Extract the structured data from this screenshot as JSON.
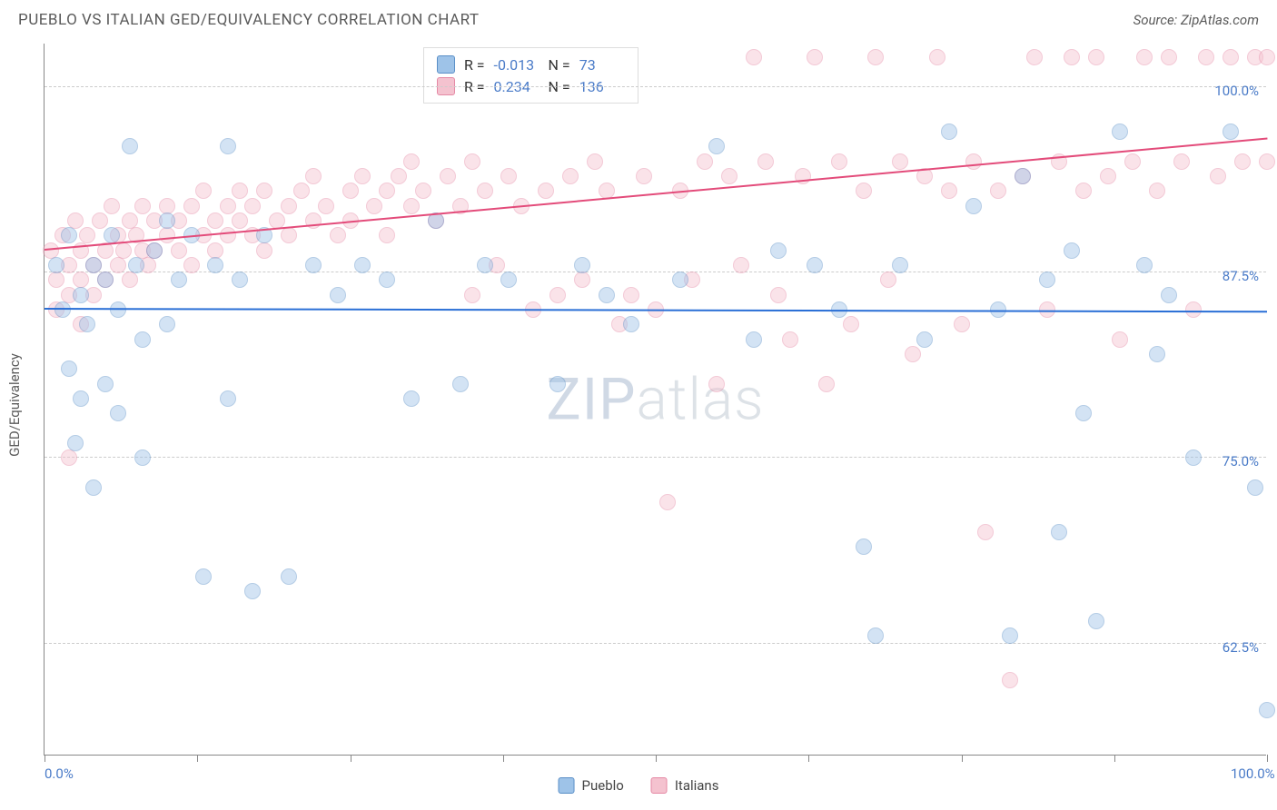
{
  "title": "PUEBLO VS ITALIAN GED/EQUIVALENCY CORRELATION CHART",
  "source": "Source: ZipAtlas.com",
  "ylabel": "GED/Equivalency",
  "watermark_a": "ZIP",
  "watermark_b": "atlas",
  "chart": {
    "type": "scatter",
    "xlim": [
      0,
      100
    ],
    "ylim": [
      55,
      103
    ],
    "x_ticks": [
      0,
      12.5,
      25,
      37.5,
      50,
      62.5,
      75,
      87.5,
      100
    ],
    "x_tick_labels": {
      "0": "0.0%",
      "100": "100.0%"
    },
    "y_gridlines": [
      62.5,
      75,
      87.5,
      100
    ],
    "y_tick_labels": {
      "62.5": "62.5%",
      "75": "75.0%",
      "87.5": "87.5%",
      "100": "100.0%"
    },
    "background_color": "#ffffff",
    "grid_color": "#cccccc",
    "axis_color": "#888888",
    "label_color": "#4a7bc8",
    "marker_radius": 9,
    "marker_opacity": 0.45,
    "series": [
      {
        "name": "Pueblo",
        "fill": "#9ec3e8",
        "stroke": "#5a8fc7",
        "r": -0.013,
        "n": 73,
        "trend": {
          "y_at_x0": 85.0,
          "y_at_x100": 84.8,
          "color": "#2a6fd6",
          "width": 2
        },
        "points": [
          [
            1,
            88
          ],
          [
            1.5,
            85
          ],
          [
            2,
            90
          ],
          [
            2,
            81
          ],
          [
            2.5,
            76
          ],
          [
            3,
            86
          ],
          [
            3,
            79
          ],
          [
            3.5,
            84
          ],
          [
            4,
            88
          ],
          [
            4,
            73
          ],
          [
            5,
            87
          ],
          [
            5,
            80
          ],
          [
            5.5,
            90
          ],
          [
            6,
            85
          ],
          [
            6,
            78
          ],
          [
            7,
            96
          ],
          [
            7.5,
            88
          ],
          [
            8,
            83
          ],
          [
            8,
            75
          ],
          [
            9,
            89
          ],
          [
            10,
            91
          ],
          [
            10,
            84
          ],
          [
            11,
            87
          ],
          [
            12,
            90
          ],
          [
            13,
            67
          ],
          [
            14,
            88
          ],
          [
            15,
            96
          ],
          [
            15,
            79
          ],
          [
            16,
            87
          ],
          [
            17,
            66
          ],
          [
            18,
            90
          ],
          [
            20,
            67
          ],
          [
            22,
            88
          ],
          [
            24,
            86
          ],
          [
            26,
            88
          ],
          [
            28,
            87
          ],
          [
            30,
            79
          ],
          [
            32,
            91
          ],
          [
            34,
            80
          ],
          [
            36,
            88
          ],
          [
            38,
            87
          ],
          [
            42,
            80
          ],
          [
            44,
            88
          ],
          [
            46,
            86
          ],
          [
            48,
            84
          ],
          [
            52,
            87
          ],
          [
            55,
            96
          ],
          [
            58,
            83
          ],
          [
            60,
            89
          ],
          [
            63,
            88
          ],
          [
            65,
            85
          ],
          [
            67,
            69
          ],
          [
            68,
            63
          ],
          [
            70,
            88
          ],
          [
            72,
            83
          ],
          [
            74,
            97
          ],
          [
            76,
            92
          ],
          [
            78,
            85
          ],
          [
            79,
            63
          ],
          [
            80,
            94
          ],
          [
            82,
            87
          ],
          [
            83,
            70
          ],
          [
            84,
            89
          ],
          [
            85,
            78
          ],
          [
            86,
            64
          ],
          [
            88,
            97
          ],
          [
            90,
            88
          ],
          [
            91,
            82
          ],
          [
            92,
            86
          ],
          [
            94,
            75
          ],
          [
            97,
            97
          ],
          [
            99,
            73
          ],
          [
            100,
            58
          ]
        ]
      },
      {
        "name": "Italians",
        "fill": "#f4c2cf",
        "stroke": "#e589a5",
        "r": 0.234,
        "n": 136,
        "trend": {
          "y_at_x0": 89.0,
          "y_at_x100": 96.5,
          "color": "#e34b7a",
          "width": 2
        },
        "points": [
          [
            0.5,
            89
          ],
          [
            1,
            87
          ],
          [
            1,
            85
          ],
          [
            1.5,
            90
          ],
          [
            2,
            88
          ],
          [
            2,
            86
          ],
          [
            2,
            75
          ],
          [
            2.5,
            91
          ],
          [
            3,
            89
          ],
          [
            3,
            87
          ],
          [
            3,
            84
          ],
          [
            3.5,
            90
          ],
          [
            4,
            88
          ],
          [
            4,
            86
          ],
          [
            4.5,
            91
          ],
          [
            5,
            89
          ],
          [
            5,
            87
          ],
          [
            5.5,
            92
          ],
          [
            6,
            90
          ],
          [
            6,
            88
          ],
          [
            6.5,
            89
          ],
          [
            7,
            91
          ],
          [
            7,
            87
          ],
          [
            7.5,
            90
          ],
          [
            8,
            89
          ],
          [
            8,
            92
          ],
          [
            8.5,
            88
          ],
          [
            9,
            91
          ],
          [
            9,
            89
          ],
          [
            10,
            92
          ],
          [
            10,
            90
          ],
          [
            11,
            89
          ],
          [
            11,
            91
          ],
          [
            12,
            92
          ],
          [
            12,
            88
          ],
          [
            13,
            90
          ],
          [
            13,
            93
          ],
          [
            14,
            91
          ],
          [
            14,
            89
          ],
          [
            15,
            92
          ],
          [
            15,
            90
          ],
          [
            16,
            93
          ],
          [
            16,
            91
          ],
          [
            17,
            90
          ],
          [
            17,
            92
          ],
          [
            18,
            93
          ],
          [
            18,
            89
          ],
          [
            19,
            91
          ],
          [
            20,
            92
          ],
          [
            20,
            90
          ],
          [
            21,
            93
          ],
          [
            22,
            91
          ],
          [
            22,
            94
          ],
          [
            23,
            92
          ],
          [
            24,
            90
          ],
          [
            25,
            93
          ],
          [
            25,
            91
          ],
          [
            26,
            94
          ],
          [
            27,
            92
          ],
          [
            28,
            93
          ],
          [
            28,
            90
          ],
          [
            29,
            94
          ],
          [
            30,
            92
          ],
          [
            30,
            95
          ],
          [
            31,
            93
          ],
          [
            32,
            91
          ],
          [
            33,
            94
          ],
          [
            34,
            92
          ],
          [
            35,
            95
          ],
          [
            35,
            86
          ],
          [
            36,
            93
          ],
          [
            37,
            88
          ],
          [
            38,
            94
          ],
          [
            39,
            92
          ],
          [
            40,
            85
          ],
          [
            41,
            93
          ],
          [
            42,
            86
          ],
          [
            43,
            94
          ],
          [
            44,
            87
          ],
          [
            45,
            95
          ],
          [
            46,
            93
          ],
          [
            47,
            84
          ],
          [
            48,
            86
          ],
          [
            49,
            94
          ],
          [
            50,
            85
          ],
          [
            51,
            72
          ],
          [
            52,
            93
          ],
          [
            53,
            87
          ],
          [
            54,
            95
          ],
          [
            55,
            80
          ],
          [
            56,
            94
          ],
          [
            57,
            88
          ],
          [
            58,
            102
          ],
          [
            59,
            95
          ],
          [
            60,
            86
          ],
          [
            61,
            83
          ],
          [
            62,
            94
          ],
          [
            63,
            102
          ],
          [
            64,
            80
          ],
          [
            65,
            95
          ],
          [
            66,
            84
          ],
          [
            67,
            93
          ],
          [
            68,
            102
          ],
          [
            69,
            87
          ],
          [
            70,
            95
          ],
          [
            71,
            82
          ],
          [
            72,
            94
          ],
          [
            73,
            102
          ],
          [
            74,
            93
          ],
          [
            75,
            84
          ],
          [
            76,
            95
          ],
          [
            77,
            70
          ],
          [
            78,
            93
          ],
          [
            79,
            60
          ],
          [
            80,
            94
          ],
          [
            81,
            102
          ],
          [
            82,
            85
          ],
          [
            83,
            95
          ],
          [
            84,
            102
          ],
          [
            85,
            93
          ],
          [
            86,
            102
          ],
          [
            87,
            94
          ],
          [
            88,
            83
          ],
          [
            89,
            95
          ],
          [
            90,
            102
          ],
          [
            91,
            93
          ],
          [
            92,
            102
          ],
          [
            93,
            95
          ],
          [
            94,
            85
          ],
          [
            95,
            102
          ],
          [
            96,
            94
          ],
          [
            97,
            102
          ],
          [
            98,
            95
          ],
          [
            99,
            102
          ],
          [
            100,
            95
          ],
          [
            100,
            102
          ]
        ]
      }
    ]
  },
  "legend": {
    "items": [
      {
        "label": "Pueblo",
        "fill": "#9ec3e8",
        "stroke": "#5a8fc7"
      },
      {
        "label": "Italians",
        "fill": "#f4c2cf",
        "stroke": "#e589a5"
      }
    ]
  },
  "stats_box": {
    "rows": [
      {
        "swatch_fill": "#9ec3e8",
        "swatch_stroke": "#5a8fc7",
        "r_label": "R =",
        "r": "-0.013",
        "n_label": "N =",
        "n": "73"
      },
      {
        "swatch_fill": "#f4c2cf",
        "swatch_stroke": "#e589a5",
        "r_label": "R =",
        "r": "0.234",
        "n_label": "N =",
        "n": "136"
      }
    ]
  }
}
